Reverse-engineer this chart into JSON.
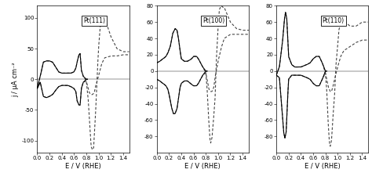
{
  "panels": [
    {
      "label": "Pt(111)",
      "ylim": [
        -120,
        120
      ],
      "yticks": [
        -100,
        -50,
        0,
        50,
        100
      ],
      "ytick_labels": [
        "-100",
        "-50",
        "0",
        "50",
        "100"
      ]
    },
    {
      "label": "Pt(100)",
      "ylim": [
        -100,
        80
      ],
      "yticks": [
        -80,
        -60,
        -40,
        -20,
        0,
        20,
        40,
        60,
        80
      ],
      "ytick_labels": [
        "-80",
        "-60",
        "-40",
        "-20",
        "0",
        "20",
        "40",
        "60",
        "80"
      ]
    },
    {
      "label": "Pt(110)",
      "ylim": [
        -100,
        80
      ],
      "yticks": [
        -80,
        -60,
        -40,
        -20,
        0,
        20,
        40,
        60,
        80
      ],
      "ytick_labels": [
        "-80",
        "-60",
        "-40",
        "-20",
        "0",
        "20",
        "40",
        "60",
        "80"
      ]
    }
  ],
  "xlim": [
    0.0,
    1.5
  ],
  "xticks": [
    0.0,
    0.2,
    0.4,
    0.6,
    0.8,
    1.0,
    1.2,
    1.4
  ],
  "xlabel": "E / V (RHE)",
  "ylabel": "j / μA cm⁻²",
  "figsize": [
    4.74,
    2.44
  ],
  "dpi": 100,
  "background": "white",
  "solid_color": "black",
  "dashed_color": "#444444",
  "linewidth_solid": 0.8,
  "linewidth_dashed": 0.8,
  "dash_pattern": [
    3,
    2
  ]
}
